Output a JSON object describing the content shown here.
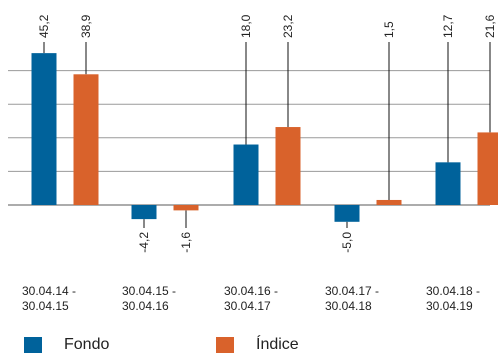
{
  "chart_data": {
    "type": "bar",
    "categories": [
      "30.04.14 -\n30.04.15",
      "30.04.15 -\n30.04.16",
      "30.04.16 -\n30.04.17",
      "30.04.17 -\n30.04.18",
      "30.04.18 -\n30.04.19"
    ],
    "series": [
      {
        "name": "Fondo",
        "values": [
          45.2,
          -4.2,
          18.0,
          -5.0,
          12.7
        ],
        "labels": [
          "45,2",
          "-4,2",
          "18,0",
          "-5,0",
          "12,7"
        ],
        "color": "#00629B"
      },
      {
        "name": "Índice",
        "values": [
          38.9,
          -1.6,
          23.2,
          1.5,
          21.6
        ],
        "labels": [
          "38,9",
          "-1,6",
          "23,2",
          "1,5",
          "21,6"
        ],
        "color": "#D9622B"
      }
    ],
    "ylim": [
      -10,
      50
    ],
    "grid": true,
    "legend_position": "bottom-left"
  }
}
